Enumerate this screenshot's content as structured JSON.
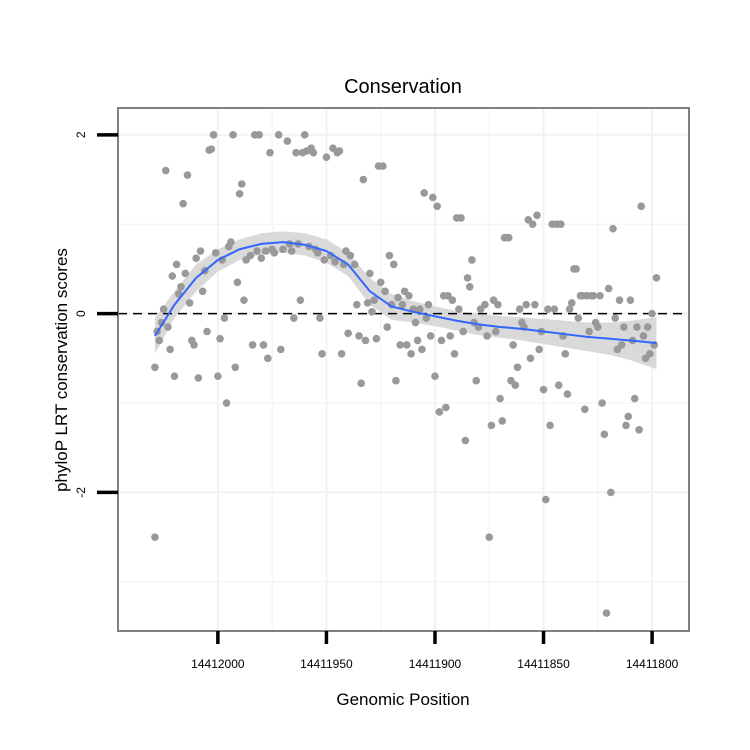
{
  "chart_data": {
    "type": "scatter",
    "title": "Conservation",
    "xlabel": "Genomic Position",
    "ylabel": "phyloP LRT conservation scores",
    "x_reversed": true,
    "xlim": [
      14411783,
      14412046
    ],
    "ylim": [
      -3.55,
      2.3
    ],
    "x_ticks": [
      14412000,
      14411950,
      14411900,
      14411850,
      14411800
    ],
    "x_tick_labels": [
      "14412000",
      "14411950",
      "14411900",
      "14411850",
      "14411800"
    ],
    "y_ticks": [
      2,
      0,
      -2
    ],
    "y_tick_labels": [
      "2",
      "0",
      "-2"
    ],
    "minor_y_grid": [
      1,
      -1,
      -3
    ],
    "minor_x_grid": [
      14411975,
      14411925,
      14411875,
      14411825
    ],
    "reference_line": {
      "y": 0,
      "style": "dashed"
    },
    "colors": {
      "points": "#999999",
      "smooth": "#3366ff",
      "ribbon": "#d9d9d9",
      "panel_border": "#808080",
      "grid": "#f2f2f2"
    },
    "points": [
      {
        "x": 14412029,
        "y": -2.5
      },
      {
        "x": 14412029,
        "y": -0.6
      },
      {
        "x": 14412028,
        "y": -0.2
      },
      {
        "x": 14412027,
        "y": -0.3
      },
      {
        "x": 14412026,
        "y": -0.1
      },
      {
        "x": 14412025,
        "y": 0.05
      },
      {
        "x": 14412024,
        "y": 1.6
      },
      {
        "x": 14412023,
        "y": -0.15
      },
      {
        "x": 14412022,
        "y": -0.4
      },
      {
        "x": 14412021,
        "y": 0.42
      },
      {
        "x": 14412020,
        "y": -0.7
      },
      {
        "x": 14412019,
        "y": 0.55
      },
      {
        "x": 14412018,
        "y": 0.22
      },
      {
        "x": 14412017,
        "y": 0.3
      },
      {
        "x": 14412016,
        "y": 1.23
      },
      {
        "x": 14412015,
        "y": 0.45
      },
      {
        "x": 14412014,
        "y": 1.55
      },
      {
        "x": 14412013,
        "y": 0.12
      },
      {
        "x": 14412012,
        "y": -0.3
      },
      {
        "x": 14412011,
        "y": -0.35
      },
      {
        "x": 14412010,
        "y": 0.62
      },
      {
        "x": 14412009,
        "y": -0.72
      },
      {
        "x": 14412008,
        "y": 0.7
      },
      {
        "x": 14412007,
        "y": 0.25
      },
      {
        "x": 14412006,
        "y": 0.48
      },
      {
        "x": 14412005,
        "y": -0.2
      },
      {
        "x": 14412004,
        "y": 1.83
      },
      {
        "x": 14412003,
        "y": 1.84
      },
      {
        "x": 14412002,
        "y": 2.0
      },
      {
        "x": 14412001,
        "y": 0.68
      },
      {
        "x": 14412000,
        "y": -0.7
      },
      {
        "x": 14411999,
        "y": -0.28
      },
      {
        "x": 14411998,
        "y": 0.6
      },
      {
        "x": 14411997,
        "y": -0.05
      },
      {
        "x": 14411996,
        "y": -1.0
      },
      {
        "x": 14411995,
        "y": 0.75
      },
      {
        "x": 14411994,
        "y": 0.8
      },
      {
        "x": 14411993,
        "y": 2.0
      },
      {
        "x": 14411992,
        "y": -0.6
      },
      {
        "x": 14411991,
        "y": 0.35
      },
      {
        "x": 14411990,
        "y": 1.34
      },
      {
        "x": 14411989,
        "y": 1.45
      },
      {
        "x": 14411988,
        "y": 0.15
      },
      {
        "x": 14411987,
        "y": 0.6
      },
      {
        "x": 14411985,
        "y": 0.65
      },
      {
        "x": 14411984,
        "y": -0.35
      },
      {
        "x": 14411983,
        "y": 2.0
      },
      {
        "x": 14411982,
        "y": 0.7
      },
      {
        "x": 14411981,
        "y": 2.0
      },
      {
        "x": 14411980,
        "y": 0.62
      },
      {
        "x": 14411979,
        "y": -0.35
      },
      {
        "x": 14411978,
        "y": 0.7
      },
      {
        "x": 14411977,
        "y": -0.5
      },
      {
        "x": 14411976,
        "y": 1.8
      },
      {
        "x": 14411975,
        "y": 0.72
      },
      {
        "x": 14411974,
        "y": 0.68
      },
      {
        "x": 14411972,
        "y": 2.0
      },
      {
        "x": 14411971,
        "y": -0.4
      },
      {
        "x": 14411970,
        "y": 0.72
      },
      {
        "x": 14411968,
        "y": 1.93
      },
      {
        "x": 14411967,
        "y": 0.78
      },
      {
        "x": 14411966,
        "y": 0.7
      },
      {
        "x": 14411965,
        "y": -0.05
      },
      {
        "x": 14411964,
        "y": 1.8
      },
      {
        "x": 14411963,
        "y": 0.78
      },
      {
        "x": 14411962,
        "y": 0.15
      },
      {
        "x": 14411961,
        "y": 1.8
      },
      {
        "x": 14411960,
        "y": 2.0
      },
      {
        "x": 14411959,
        "y": 1.82
      },
      {
        "x": 14411958,
        "y": 0.75
      },
      {
        "x": 14411957,
        "y": 1.85
      },
      {
        "x": 14411956,
        "y": 1.8
      },
      {
        "x": 14411955,
        "y": 0.72
      },
      {
        "x": 14411954,
        "y": 0.68
      },
      {
        "x": 14411953,
        "y": -0.05
      },
      {
        "x": 14411952,
        "y": -0.45
      },
      {
        "x": 14411951,
        "y": 0.6
      },
      {
        "x": 14411950,
        "y": 1.75
      },
      {
        "x": 14411948,
        "y": 0.65
      },
      {
        "x": 14411947,
        "y": 1.85
      },
      {
        "x": 14411946,
        "y": 0.58
      },
      {
        "x": 14411945,
        "y": 1.8
      },
      {
        "x": 14411944,
        "y": 1.82
      },
      {
        "x": 14411943,
        "y": -0.45
      },
      {
        "x": 14411942,
        "y": 0.55
      },
      {
        "x": 14411941,
        "y": 0.7
      },
      {
        "x": 14411940,
        "y": -0.22
      },
      {
        "x": 14411939,
        "y": 0.65
      },
      {
        "x": 14411937,
        "y": 0.55
      },
      {
        "x": 14411936,
        "y": 0.1
      },
      {
        "x": 14411935,
        "y": -0.25
      },
      {
        "x": 14411934,
        "y": -0.78
      },
      {
        "x": 14411933,
        "y": 1.5
      },
      {
        "x": 14411932,
        "y": -0.3
      },
      {
        "x": 14411931,
        "y": 0.12
      },
      {
        "x": 14411930,
        "y": 0.45
      },
      {
        "x": 14411929,
        "y": 0.02
      },
      {
        "x": 14411928,
        "y": 0.15
      },
      {
        "x": 14411927,
        "y": -0.28
      },
      {
        "x": 14411926,
        "y": 1.65
      },
      {
        "x": 14411925,
        "y": 0.35
      },
      {
        "x": 14411924,
        "y": 1.65
      },
      {
        "x": 14411923,
        "y": 0.25
      },
      {
        "x": 14411922,
        "y": -0.15
      },
      {
        "x": 14411921,
        "y": 0.65
      },
      {
        "x": 14411920,
        "y": 0.1
      },
      {
        "x": 14411919,
        "y": 0.55
      },
      {
        "x": 14411918,
        "y": -0.75
      },
      {
        "x": 14411917,
        "y": 0.18
      },
      {
        "x": 14411916,
        "y": -0.35
      },
      {
        "x": 14411915,
        "y": 0.1
      },
      {
        "x": 14411914,
        "y": 0.25
      },
      {
        "x": 14411913,
        "y": -0.35
      },
      {
        "x": 14411912,
        "y": 0.2
      },
      {
        "x": 14411911,
        "y": -0.45
      },
      {
        "x": 14411910,
        "y": 0.05
      },
      {
        "x": 14411909,
        "y": -0.1
      },
      {
        "x": 14411908,
        "y": -0.3
      },
      {
        "x": 14411907,
        "y": 0.05
      },
      {
        "x": 14411906,
        "y": -0.4
      },
      {
        "x": 14411905,
        "y": 1.35
      },
      {
        "x": 14411904,
        "y": -0.05
      },
      {
        "x": 14411903,
        "y": 0.1
      },
      {
        "x": 14411902,
        "y": -0.25
      },
      {
        "x": 14411901,
        "y": 1.3
      },
      {
        "x": 14411900,
        "y": -0.7
      },
      {
        "x": 14411899,
        "y": 1.2
      },
      {
        "x": 14411898,
        "y": -1.1
      },
      {
        "x": 14411897,
        "y": -0.3
      },
      {
        "x": 14411896,
        "y": 0.2
      },
      {
        "x": 14411895,
        "y": -1.05
      },
      {
        "x": 14411894,
        "y": 0.2
      },
      {
        "x": 14411893,
        "y": -0.25
      },
      {
        "x": 14411892,
        "y": 0.15
      },
      {
        "x": 14411891,
        "y": -0.45
      },
      {
        "x": 14411890,
        "y": 1.07
      },
      {
        "x": 14411889,
        "y": 0.05
      },
      {
        "x": 14411888,
        "y": 1.07
      },
      {
        "x": 14411887,
        "y": -0.2
      },
      {
        "x": 14411886,
        "y": -1.42
      },
      {
        "x": 14411885,
        "y": 0.4
      },
      {
        "x": 14411884,
        "y": 0.3
      },
      {
        "x": 14411883,
        "y": 0.6
      },
      {
        "x": 14411882,
        "y": -0.1
      },
      {
        "x": 14411881,
        "y": -0.75
      },
      {
        "x": 14411880,
        "y": -0.15
      },
      {
        "x": 14411879,
        "y": 0.05
      },
      {
        "x": 14411877,
        "y": 0.1
      },
      {
        "x": 14411876,
        "y": -0.25
      },
      {
        "x": 14411875,
        "y": -2.5
      },
      {
        "x": 14411874,
        "y": -1.25
      },
      {
        "x": 14411873,
        "y": 0.15
      },
      {
        "x": 14411872,
        "y": -0.2
      },
      {
        "x": 14411871,
        "y": 0.1
      },
      {
        "x": 14411870,
        "y": -0.95
      },
      {
        "x": 14411869,
        "y": -1.2
      },
      {
        "x": 14411868,
        "y": 0.85
      },
      {
        "x": 14411867,
        "y": 0.85
      },
      {
        "x": 14411866,
        "y": 0.85
      },
      {
        "x": 14411865,
        "y": -0.75
      },
      {
        "x": 14411864,
        "y": -0.35
      },
      {
        "x": 14411863,
        "y": -0.8
      },
      {
        "x": 14411862,
        "y": -0.6
      },
      {
        "x": 14411861,
        "y": 0.05
      },
      {
        "x": 14411860,
        "y": -0.1
      },
      {
        "x": 14411859,
        "y": -0.15
      },
      {
        "x": 14411858,
        "y": 0.1
      },
      {
        "x": 14411857,
        "y": 1.05
      },
      {
        "x": 14411856,
        "y": -0.5
      },
      {
        "x": 14411855,
        "y": 1.0
      },
      {
        "x": 14411854,
        "y": 0.1
      },
      {
        "x": 14411853,
        "y": 1.1
      },
      {
        "x": 14411852,
        "y": -0.4
      },
      {
        "x": 14411851,
        "y": -0.2
      },
      {
        "x": 14411850,
        "y": -0.85
      },
      {
        "x": 14411849,
        "y": -2.08
      },
      {
        "x": 14411848,
        "y": 0.05
      },
      {
        "x": 14411847,
        "y": -1.25
      },
      {
        "x": 14411846,
        "y": 1.0
      },
      {
        "x": 14411845,
        "y": 0.05
      },
      {
        "x": 14411844,
        "y": 1.0
      },
      {
        "x": 14411843,
        "y": -0.8
      },
      {
        "x": 14411842,
        "y": 1.0
      },
      {
        "x": 14411841,
        "y": -0.25
      },
      {
        "x": 14411840,
        "y": -0.45
      },
      {
        "x": 14411839,
        "y": -0.9
      },
      {
        "x": 14411838,
        "y": 0.05
      },
      {
        "x": 14411837,
        "y": 0.12
      },
      {
        "x": 14411836,
        "y": 0.5
      },
      {
        "x": 14411835,
        "y": 0.5
      },
      {
        "x": 14411834,
        "y": -0.05
      },
      {
        "x": 14411833,
        "y": 0.2
      },
      {
        "x": 14411832,
        "y": 0.2
      },
      {
        "x": 14411831,
        "y": -1.07
      },
      {
        "x": 14411830,
        "y": 0.2
      },
      {
        "x": 14411829,
        "y": -0.2
      },
      {
        "x": 14411828,
        "y": 0.2
      },
      {
        "x": 14411827,
        "y": 0.2
      },
      {
        "x": 14411826,
        "y": -0.1
      },
      {
        "x": 14411825,
        "y": -0.15
      },
      {
        "x": 14411824,
        "y": 0.2
      },
      {
        "x": 14411823,
        "y": -1.0
      },
      {
        "x": 14411822,
        "y": -1.35
      },
      {
        "x": 14411821,
        "y": -3.35
      },
      {
        "x": 14411820,
        "y": 0.28
      },
      {
        "x": 14411819,
        "y": -2.0
      },
      {
        "x": 14411818,
        "y": 0.95
      },
      {
        "x": 14411817,
        "y": -0.05
      },
      {
        "x": 14411816,
        "y": -0.4
      },
      {
        "x": 14411815,
        "y": 0.15
      },
      {
        "x": 14411814,
        "y": -0.35
      },
      {
        "x": 14411813,
        "y": -0.15
      },
      {
        "x": 14411812,
        "y": -1.25
      },
      {
        "x": 14411811,
        "y": -1.15
      },
      {
        "x": 14411810,
        "y": 0.15
      },
      {
        "x": 14411809,
        "y": -0.3
      },
      {
        "x": 14411808,
        "y": -0.95
      },
      {
        "x": 14411807,
        "y": -0.15
      },
      {
        "x": 14411806,
        "y": -1.3
      },
      {
        "x": 14411805,
        "y": 1.2
      },
      {
        "x": 14411804,
        "y": -0.25
      },
      {
        "x": 14411803,
        "y": -0.5
      },
      {
        "x": 14411802,
        "y": -0.15
      },
      {
        "x": 14411801,
        "y": -0.45
      },
      {
        "x": 14411800,
        "y": 0.0
      },
      {
        "x": 14411799,
        "y": -0.35
      },
      {
        "x": 14411798,
        "y": 0.4
      }
    ],
    "smooth_line": [
      {
        "x": 14412029,
        "y": -0.25
      },
      {
        "x": 14412020,
        "y": 0.1
      },
      {
        "x": 14412010,
        "y": 0.4
      },
      {
        "x": 14412000,
        "y": 0.6
      },
      {
        "x": 14411990,
        "y": 0.72
      },
      {
        "x": 14411980,
        "y": 0.78
      },
      {
        "x": 14411970,
        "y": 0.8
      },
      {
        "x": 14411960,
        "y": 0.77
      },
      {
        "x": 14411950,
        "y": 0.7
      },
      {
        "x": 14411940,
        "y": 0.55
      },
      {
        "x": 14411930,
        "y": 0.25
      },
      {
        "x": 14411920,
        "y": 0.08
      },
      {
        "x": 14411910,
        "y": 0.02
      },
      {
        "x": 14411900,
        "y": -0.03
      },
      {
        "x": 14411890,
        "y": -0.08
      },
      {
        "x": 14411880,
        "y": -0.12
      },
      {
        "x": 14411870,
        "y": -0.15
      },
      {
        "x": 14411860,
        "y": -0.17
      },
      {
        "x": 14411850,
        "y": -0.2
      },
      {
        "x": 14411840,
        "y": -0.23
      },
      {
        "x": 14411830,
        "y": -0.26
      },
      {
        "x": 14411820,
        "y": -0.28
      },
      {
        "x": 14411810,
        "y": -0.3
      },
      {
        "x": 14411798,
        "y": -0.33
      }
    ],
    "confidence_band": [
      {
        "x": 14412029,
        "lo": -0.45,
        "hi": -0.05
      },
      {
        "x": 14412020,
        "lo": -0.05,
        "hi": 0.25
      },
      {
        "x": 14412010,
        "lo": 0.25,
        "hi": 0.55
      },
      {
        "x": 14412000,
        "lo": 0.47,
        "hi": 0.72
      },
      {
        "x": 14411990,
        "lo": 0.6,
        "hi": 0.83
      },
      {
        "x": 14411980,
        "lo": 0.66,
        "hi": 0.9
      },
      {
        "x": 14411970,
        "lo": 0.68,
        "hi": 0.92
      },
      {
        "x": 14411960,
        "lo": 0.65,
        "hi": 0.9
      },
      {
        "x": 14411950,
        "lo": 0.57,
        "hi": 0.83
      },
      {
        "x": 14411940,
        "lo": 0.42,
        "hi": 0.68
      },
      {
        "x": 14411930,
        "lo": 0.1,
        "hi": 0.4
      },
      {
        "x": 14411920,
        "lo": -0.07,
        "hi": 0.22
      },
      {
        "x": 14411910,
        "lo": -0.1,
        "hi": 0.14
      },
      {
        "x": 14411900,
        "lo": -0.14,
        "hi": 0.08
      },
      {
        "x": 14411890,
        "lo": -0.19,
        "hi": 0.03
      },
      {
        "x": 14411880,
        "lo": -0.24,
        "hi": 0.0
      },
      {
        "x": 14411870,
        "lo": -0.27,
        "hi": -0.03
      },
      {
        "x": 14411860,
        "lo": -0.3,
        "hi": -0.04
      },
      {
        "x": 14411850,
        "lo": -0.34,
        "hi": -0.06
      },
      {
        "x": 14411840,
        "lo": -0.38,
        "hi": -0.08
      },
      {
        "x": 14411830,
        "lo": -0.42,
        "hi": -0.1
      },
      {
        "x": 14411820,
        "lo": -0.46,
        "hi": -0.1
      },
      {
        "x": 14411810,
        "lo": -0.52,
        "hi": -0.08
      },
      {
        "x": 14411798,
        "lo": -0.62,
        "hi": -0.04
      }
    ]
  }
}
